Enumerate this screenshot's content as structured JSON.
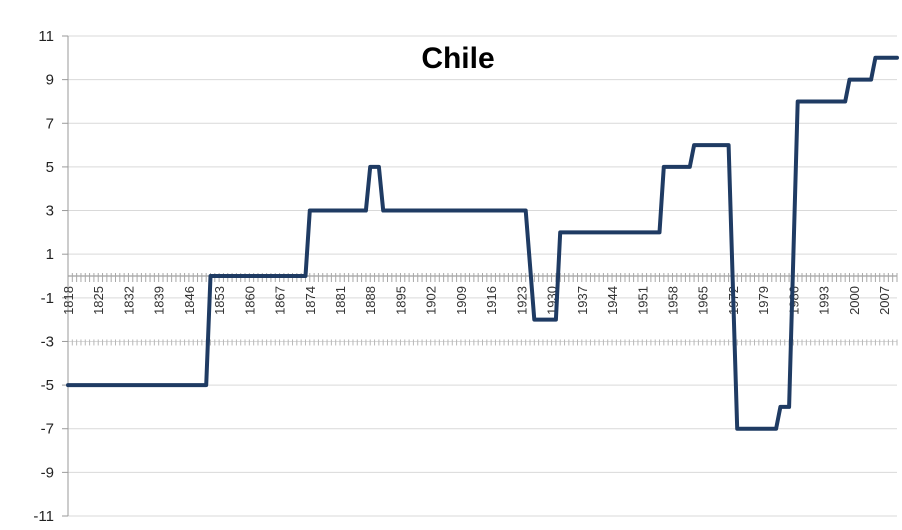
{
  "chart_data": {
    "type": "line",
    "title": "Chile",
    "xlabel": "",
    "ylabel": "",
    "ylim": [
      -11,
      11
    ],
    "xlim": [
      1818,
      2010
    ],
    "y_ticks": [
      11,
      9,
      7,
      5,
      3,
      1,
      -1,
      -3,
      -5,
      -7,
      -9,
      -11
    ],
    "x_ticks": [
      1818,
      1825,
      1832,
      1839,
      1846,
      1853,
      1860,
      1867,
      1874,
      1881,
      1888,
      1895,
      1902,
      1909,
      1916,
      1923,
      1930,
      1937,
      1944,
      1951,
      1958,
      1965,
      1972,
      1979,
      1986,
      1993,
      2000,
      2007
    ],
    "grid": true,
    "legend": "none",
    "line_color": "#1f3b63",
    "series": [
      {
        "x": [
          1818,
          1850,
          1851,
          1873,
          1874,
          1887,
          1888,
          1890,
          1891,
          1924,
          1926,
          1931,
          1932,
          1955,
          1956,
          1962,
          1963,
          1971,
          1973,
          1982,
          1983,
          1985,
          1987,
          1998,
          1999,
          2004,
          2005,
          2010
        ],
        "values": [
          -5,
          -5,
          0,
          0,
          3,
          3,
          5,
          5,
          3,
          3,
          -2,
          -2,
          2,
          2,
          5,
          5,
          6,
          6,
          -7,
          -7,
          -6,
          -6,
          8,
          8,
          9,
          9,
          10,
          10
        ]
      }
    ]
  }
}
